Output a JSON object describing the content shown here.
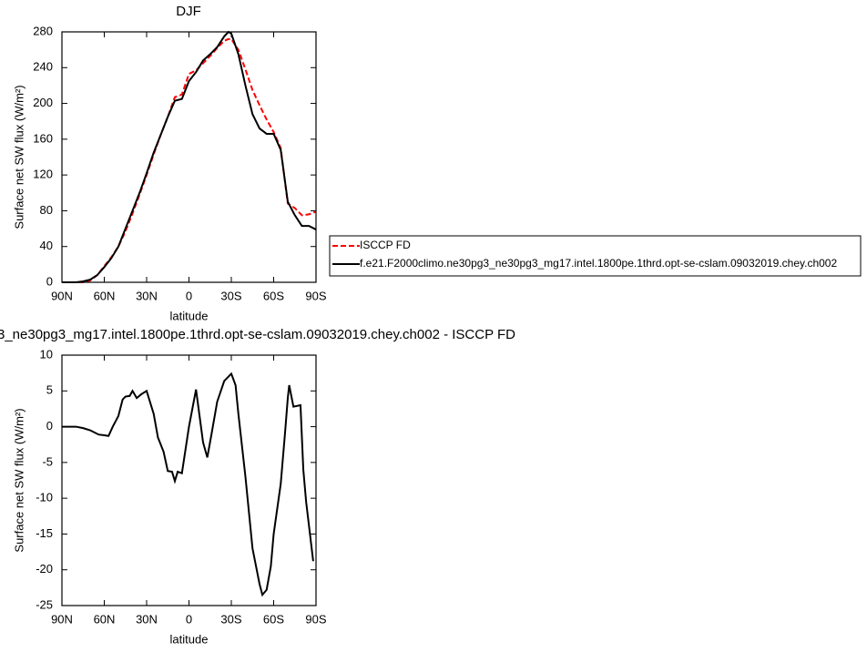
{
  "chart_data": [
    {
      "type": "line",
      "title": "DJF",
      "xlabel": "latitude",
      "ylabel": "Surface net SW flux (W/m²)",
      "x": [
        90,
        85,
        80,
        75,
        70,
        65,
        60,
        55,
        50,
        45,
        40,
        35,
        30,
        25,
        20,
        15,
        10,
        5,
        0,
        -5,
        -10,
        -15,
        -20,
        -25,
        -28,
        -30,
        -35,
        -40,
        -45,
        -50,
        -55,
        -60,
        -65,
        -70,
        -75,
        -80,
        -85,
        -90
      ],
      "xlim": [
        90,
        -90
      ],
      "xticks": [
        {
          "value": 90,
          "label": "90N"
        },
        {
          "value": 60,
          "label": "60N"
        },
        {
          "value": 30,
          "label": "30N"
        },
        0,
        {
          "value": -30,
          "label": "30S"
        },
        {
          "value": -60,
          "label": "60S"
        },
        {
          "value": -90,
          "label": "90S"
        }
      ],
      "ylim": [
        0,
        280
      ],
      "yticks": [
        0,
        40,
        80,
        120,
        160,
        200,
        240,
        280
      ],
      "series": [
        {
          "name": "ISCCP FD",
          "color": "#ff0000",
          "linestyle": "dashed",
          "values": [
            0,
            0,
            0,
            0,
            2,
            8,
            18,
            28,
            40,
            57,
            77,
            98,
            120,
            143,
            165,
            185,
            207,
            210,
            233,
            237,
            245,
            253,
            262,
            270,
            272,
            272,
            260,
            238,
            215,
            198,
            182,
            168,
            150,
            88,
            83,
            75,
            76,
            79
          ]
        },
        {
          "name": "f.e21.F2000climo.ne30pg3_ne30pg3_mg17.intel.1800pe.1thrd.opt-se-cslam.09032019.chey.ch002",
          "color": "#000000",
          "linestyle": "solid",
          "values": [
            0,
            0,
            0,
            1,
            3,
            8,
            17,
            27,
            40,
            60,
            80,
            100,
            122,
            145,
            165,
            185,
            203,
            205,
            225,
            235,
            248,
            255,
            263,
            275,
            280,
            278,
            255,
            220,
            188,
            172,
            166,
            166,
            148,
            90,
            75,
            63,
            63,
            59
          ]
        }
      ],
      "legend": "right"
    },
    {
      "type": "line",
      "title": "3_ne30pg3_mg17.intel.1800pe.1thrd.opt-se-cslam.09032019.chey.ch002 - ISCCP FD",
      "xlabel": "latitude",
      "ylabel": "Surface net SW flux (W/m²)",
      "x": [
        90,
        80,
        75,
        70,
        64,
        60,
        57,
        54,
        50,
        47,
        45,
        42,
        40,
        37,
        34,
        30,
        25,
        22,
        18,
        15,
        12,
        10,
        8,
        5,
        0,
        -5,
        -10,
        -13,
        -16,
        -20,
        -25,
        -30,
        -33,
        -35,
        -40,
        -45,
        -50,
        -52,
        -55,
        -58,
        -60,
        -65,
        -68,
        -70,
        -71,
        -74,
        -79,
        -81,
        -83,
        -88
      ],
      "xlim": [
        90,
        -90
      ],
      "xticks": [
        {
          "value": 90,
          "label": "90N"
        },
        {
          "value": 60,
          "label": "60N"
        },
        {
          "value": 30,
          "label": "30N"
        },
        0,
        {
          "value": -30,
          "label": "30S"
        },
        {
          "value": -60,
          "label": "60S"
        },
        {
          "value": -90,
          "label": "90S"
        }
      ],
      "ylim": [
        -25,
        10
      ],
      "yticks": [
        -25,
        -20,
        -15,
        -10,
        -5,
        0,
        5,
        10
      ],
      "series": [
        {
          "color": "#000000",
          "linestyle": "solid",
          "values": [
            0,
            0,
            -0.2,
            -0.5,
            -1.1,
            -1.2,
            -1.3,
            0,
            1.5,
            3.8,
            4.2,
            4.3,
            5,
            4,
            4.5,
            5,
            1.8,
            -1.5,
            -3.5,
            -6.2,
            -6.3,
            -7.6,
            -6.3,
            -6.5,
            0,
            5.2,
            -2.2,
            -4.3,
            -1,
            3.5,
            6.4,
            7.4,
            5.8,
            1.8,
            -7,
            -17,
            -22,
            -23.5,
            -22.8,
            -19.5,
            -15,
            -8,
            -1,
            4,
            5.8,
            2.8,
            3,
            -6,
            -10.5,
            -18.8
          ]
        }
      ]
    }
  ]
}
